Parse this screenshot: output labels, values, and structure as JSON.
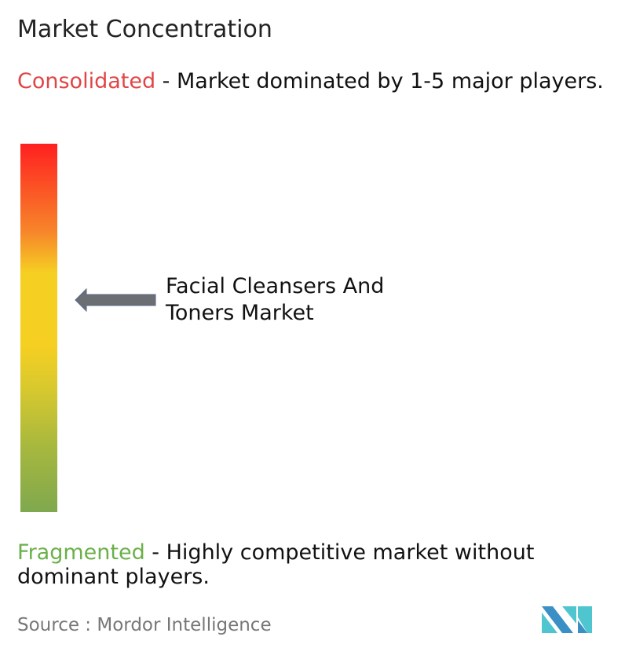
{
  "title": "Market Concentration",
  "consolidated": {
    "label": "Consolidated",
    "description": " - Market dominated by 1-5 major players.",
    "color": "#e04646"
  },
  "fragmented": {
    "label": "Fragmented",
    "description": " - Highly competitive market without dominant players.",
    "color": "#6bb04a"
  },
  "scale": {
    "top_color": "#ff2020",
    "middle_color": "#f5cf22",
    "bottom_color": "#7fa84e",
    "marker_position_fraction_from_top": 0.42
  },
  "marker": {
    "label": "Facial Cleansers And Toners Market",
    "arrow_color": "#6b6e73"
  },
  "source": "Source :  Mordor Intelligence",
  "logo": {
    "text": "Mordor Intelligence",
    "colors": [
      "#3a8fc4",
      "#4fc6cf"
    ]
  }
}
